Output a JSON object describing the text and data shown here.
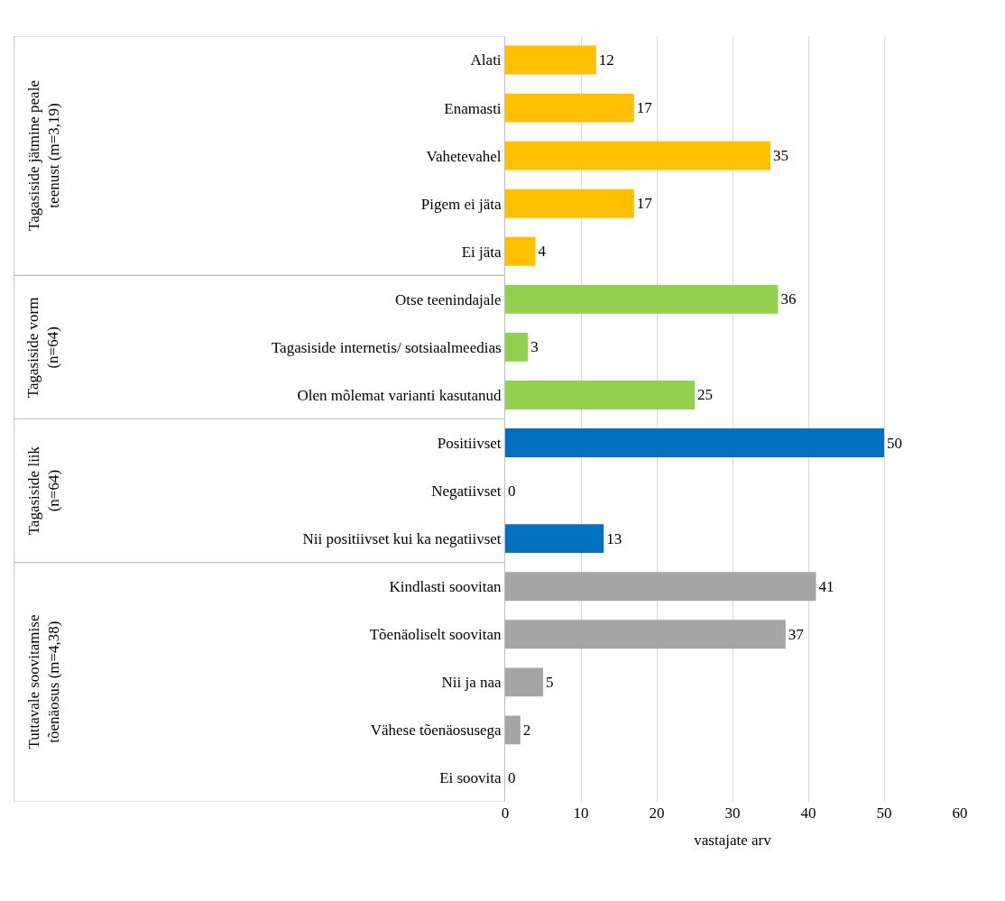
{
  "chart_data": {
    "type": "bar",
    "orientation": "horizontal",
    "xlabel": "vastajate arv",
    "categories": [
      "Alati",
      "Enamasti",
      "Vahetevahel",
      "Pigem ei jäta",
      "Ei jäta",
      "Otse teenindajale",
      "Tagasiside internetis/ sotsiaalmeedias",
      "Olen mõlemat varianti kasutanud",
      "Positiivset",
      "Negatiivset",
      "Nii positiivset kui ka negatiivset",
      "Kindlasti soovitan",
      "Tõenäoliselt soovitan",
      "Nii ja naa",
      "Vähese tõenäosusega",
      "Ei soovita"
    ],
    "values": [
      12,
      17,
      35,
      17,
      4,
      36,
      3,
      25,
      50,
      0,
      13,
      41,
      37,
      5,
      2,
      0
    ],
    "colors": [
      "#ffc000",
      "#ffc000",
      "#ffc000",
      "#ffc000",
      "#ffc000",
      "#92d050",
      "#92d050",
      "#92d050",
      "#0070c0",
      "#0070c0",
      "#0070c0",
      "#a5a5a5",
      "#a5a5a5",
      "#a5a5a5",
      "#a5a5a5",
      "#a5a5a5"
    ],
    "annotations": [
      "Tagasiside jätmine peale teenust (m=3,19)",
      "Tagasiside vorm (n=64)",
      "Tagasiside liik (n=64)",
      "Tuttavale soovitamise tõenäosus (m=4,38)"
    ],
    "xlim": [
      0,
      60
    ],
    "xticks": [
      0,
      10,
      20,
      30,
      40,
      50,
      60
    ],
    "grid": "x",
    "data_labels": true
  }
}
